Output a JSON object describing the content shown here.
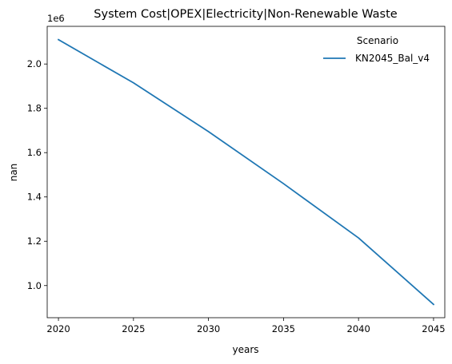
{
  "chart_data": {
    "type": "line",
    "title": "System Cost|OPEX|Electricity|Non-Renewable Waste",
    "xlabel": "years",
    "ylabel": "nan",
    "y_offset_label": "1e6",
    "x": [
      2020,
      2025,
      2030,
      2035,
      2040,
      2045
    ],
    "series": [
      {
        "name": "KN2045_Bal_v4",
        "color": "#1f77b4",
        "values": [
          2110000,
          1915000,
          1695000,
          1460000,
          1215000,
          915000
        ]
      }
    ],
    "xlim": [
      2019.25,
      2045.75
    ],
    "ylim": [
      0.855,
      2.17
    ],
    "x_ticks": [
      "2020",
      "2025",
      "2030",
      "2035",
      "2040",
      "2045"
    ],
    "y_ticks": [
      "1.0",
      "1.2",
      "1.4",
      "1.6",
      "1.8",
      "2.0"
    ],
    "y_tick_values": [
      1.0,
      1.2,
      1.4,
      1.6,
      1.8,
      2.0
    ],
    "y_scale": 1000000,
    "legend": {
      "title": "Scenario",
      "placement": "top-right"
    },
    "grid": false
  }
}
